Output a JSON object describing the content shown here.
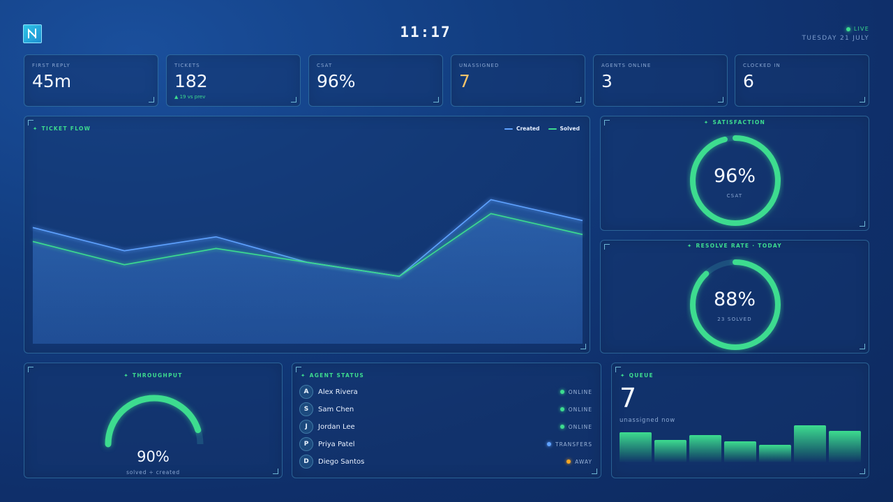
{
  "header": {
    "time": "11:17",
    "live_label": "LIVE",
    "date": "TUESDAY 21 JULY"
  },
  "kpis": [
    {
      "label": "FIRST REPLY",
      "value": "45m",
      "delta": ""
    },
    {
      "label": "TICKETS",
      "value": "182",
      "delta": "▲ 19 vs prev"
    },
    {
      "label": "CSAT",
      "value": "96%",
      "delta": ""
    },
    {
      "label": "UNASSIGNED",
      "value": "7",
      "delta": ""
    },
    {
      "label": "AGENTS ONLINE",
      "value": "3",
      "delta": ""
    },
    {
      "label": "CLOCKED IN",
      "value": "6",
      "delta": ""
    }
  ],
  "ticket_flow": {
    "title": "TICKET FLOW",
    "legend_created": "Created",
    "legend_solved": "Solved",
    "created_color": "#5fa2ff",
    "solved_color": "#3ddc8f",
    "created": [
      25,
      20,
      23,
      17.5,
      14.5,
      31,
      26.5
    ],
    "solved": [
      22,
      17,
      20.5,
      17.5,
      14.5,
      28,
      23.5
    ],
    "ymax": 45
  },
  "satisfaction": {
    "title": "SATISFACTION",
    "value": "96%",
    "sub": "CSAT",
    "fraction": 0.96
  },
  "resolve": {
    "title": "RESOLVE RATE · TODAY",
    "value": "88%",
    "sub": "23 SOLVED",
    "fraction": 0.88
  },
  "throughput": {
    "title": "THROUGHPUT",
    "value": "90%",
    "sub": "solved ÷ created",
    "fraction": 0.9
  },
  "agent_status": {
    "title": "AGENT STATUS",
    "agents": [
      {
        "initial": "A",
        "name": "Alex Rivera",
        "status": "ONLINE",
        "color": "#3ddc8f"
      },
      {
        "initial": "S",
        "name": "Sam Chen",
        "status": "ONLINE",
        "color": "#3ddc8f"
      },
      {
        "initial": "J",
        "name": "Jordan Lee",
        "status": "ONLINE",
        "color": "#3ddc8f"
      },
      {
        "initial": "P",
        "name": "Priya Patel",
        "status": "TRANSFERS",
        "color": "#5fa2ff"
      },
      {
        "initial": "D",
        "name": "Diego Santos",
        "status": "AWAY",
        "color": "#f5a623"
      }
    ]
  },
  "queue": {
    "title": "QUEUE",
    "value": "7",
    "sub": "unassigned now",
    "bars": [
      38,
      29,
      35,
      27,
      22,
      47,
      40
    ],
    "bar_max": 50
  }
}
